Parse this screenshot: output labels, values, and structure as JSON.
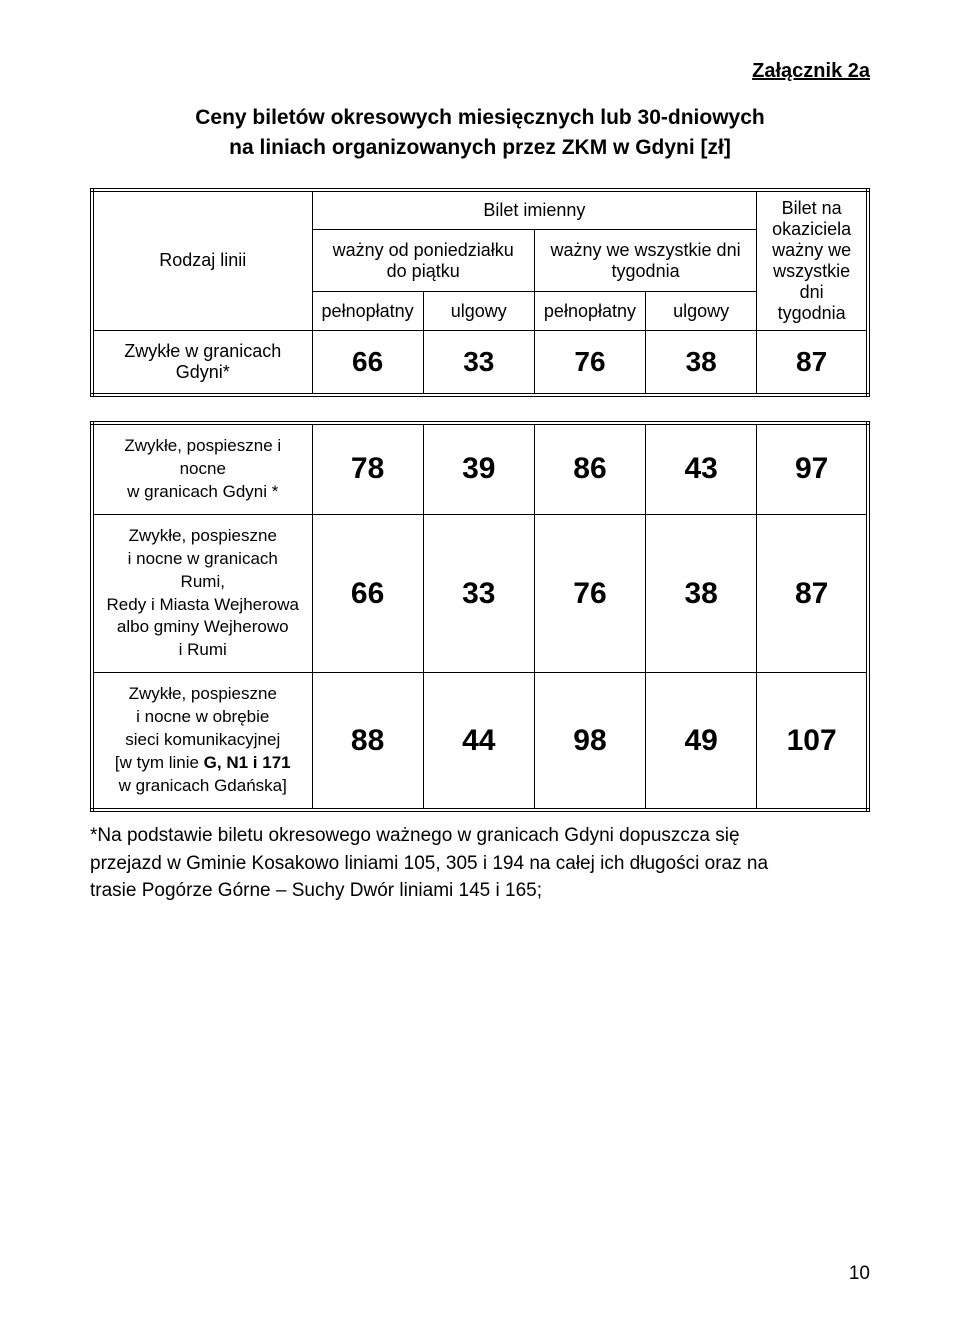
{
  "attachment_label": "Załącznik 2a",
  "title_line1": "Ceny biletów okresowych miesięcznych lub 30-dniowych",
  "title_line2": "na liniach organizowanych przez ZKM w Gdyni [zł]",
  "table1": {
    "col_rodzaj": "Rodzaj linii",
    "col_bilet_imienny": "Bilet  imienny",
    "col_bilet_okaziciel_l1": "Bilet na",
    "col_bilet_okaziciel_l2": "okaziciela",
    "col_bilet_okaziciel_l3": "ważny we",
    "col_bilet_okaziciel_l4": "wszystkie dni",
    "col_bilet_okaziciel_l5": "tygodnia",
    "sub_pon_l1": "ważny od poniedziałku",
    "sub_pon_l2": "do piątku",
    "sub_wszyst_l1": "ważny we wszystkie dni",
    "sub_wszyst_l2": "tygodnia",
    "pelnoplatny": "pełnopłatny",
    "ulgowy": "ulgowy",
    "row1_label": "Zwykłe w granicach Gdyni*",
    "row1_v1": "66",
    "row1_v2": "33",
    "row1_v3": "76",
    "row1_v4": "38",
    "row1_v5": "87"
  },
  "table2": {
    "row1_label_l1": "Zwykłe, pospieszne i nocne",
    "row1_label_l2": "w granicach Gdyni *",
    "row1_v1": "78",
    "row1_v2": "39",
    "row1_v3": "86",
    "row1_v4": "43",
    "row1_v5": "97",
    "row2_label_l1": "Zwykłe, pospieszne",
    "row2_label_l2": "i nocne w granicach Rumi,",
    "row2_label_l3": "Redy i Miasta Wejherowa",
    "row2_label_l4": "albo gminy Wejherowo",
    "row2_label_l5": "i Rumi",
    "row2_v1": "66",
    "row2_v2": "33",
    "row2_v3": "76",
    "row2_v4": "38",
    "row2_v5": "87",
    "row3_label_l1": "Zwykłe, pospieszne",
    "row3_label_l2": "i nocne w obrębie",
    "row3_label_l3": "sieci komunikacyjnej",
    "row3_label_l4a": "[w tym linie ",
    "row3_label_l4b": "G, N1 i 171",
    "row3_label_l5": "w granicach Gdańska]",
    "row3_v1": "88",
    "row3_v2": "44",
    "row3_v3": "98",
    "row3_v4": "49",
    "row3_v5": "107"
  },
  "footnote_l1": "*Na podstawie biletu okresowego ważnego w granicach Gdyni dopuszcza się",
  "footnote_l2": "przejazd w Gminie Kosakowo liniami 105, 305 i 194 na całej ich długości oraz na",
  "footnote_l3": "trasie Pogórze Górne – Suchy Dwór liniami 145 i 165;",
  "page_number": "10"
}
